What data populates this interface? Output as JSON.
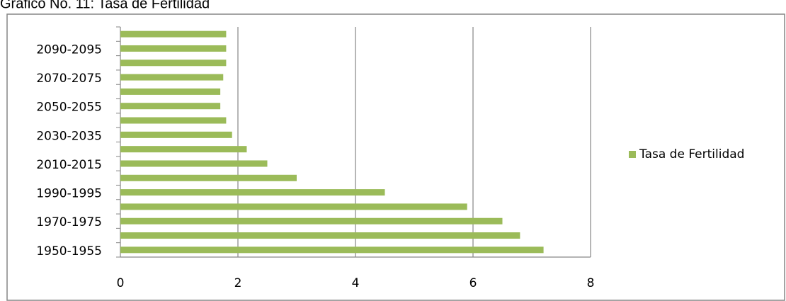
{
  "chart_data": {
    "type": "bar",
    "orientation": "horizontal",
    "title": "Gráfico No. 11: Tasa de Fertilidad",
    "categories": [
      "1950-1955",
      null,
      "1970-1975",
      null,
      "1990-1995",
      null,
      "2010-2015",
      null,
      "2030-2035",
      null,
      "2050-2055",
      null,
      "2070-2075",
      null,
      "2090-2095",
      null
    ],
    "series": [
      {
        "name": "Tasa de Fertilidad",
        "color": "#9bbb59",
        "values": [
          7.2,
          6.8,
          6.5,
          5.9,
          4.5,
          3.0,
          2.5,
          2.15,
          1.9,
          1.8,
          1.7,
          1.7,
          1.75,
          1.8,
          1.8,
          1.8
        ]
      }
    ],
    "xlim": [
      0,
      8
    ],
    "xticks": [
      0,
      2,
      4,
      6,
      8
    ],
    "grid": true,
    "legend": "right"
  }
}
